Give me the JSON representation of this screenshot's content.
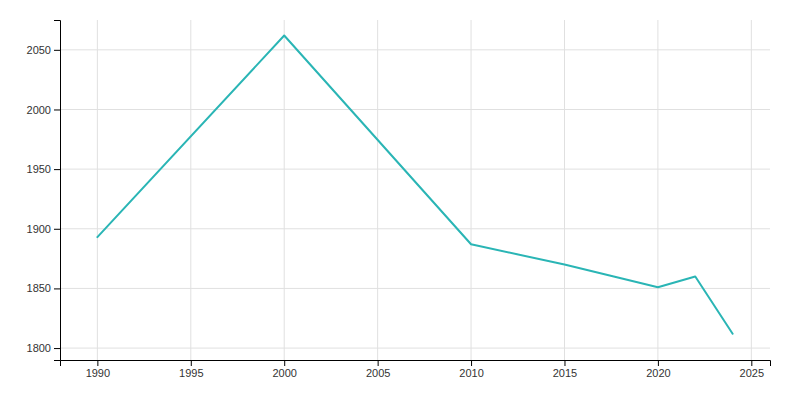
{
  "chart_data": {
    "type": "line",
    "x": [
      1990,
      2000,
      2010,
      2015,
      2020,
      2022,
      2024
    ],
    "values": [
      1893,
      2062,
      1887,
      1870,
      1851,
      1860,
      1812
    ],
    "color": "#2ab5b5",
    "xlim": [
      1988,
      2026
    ],
    "ylim": [
      1790,
      2075
    ],
    "xticks": [
      1990,
      1995,
      2000,
      2005,
      2010,
      2015,
      2020,
      2025
    ],
    "yticks": [
      1800,
      1850,
      1900,
      1950,
      2000,
      2050
    ],
    "grid": true
  }
}
